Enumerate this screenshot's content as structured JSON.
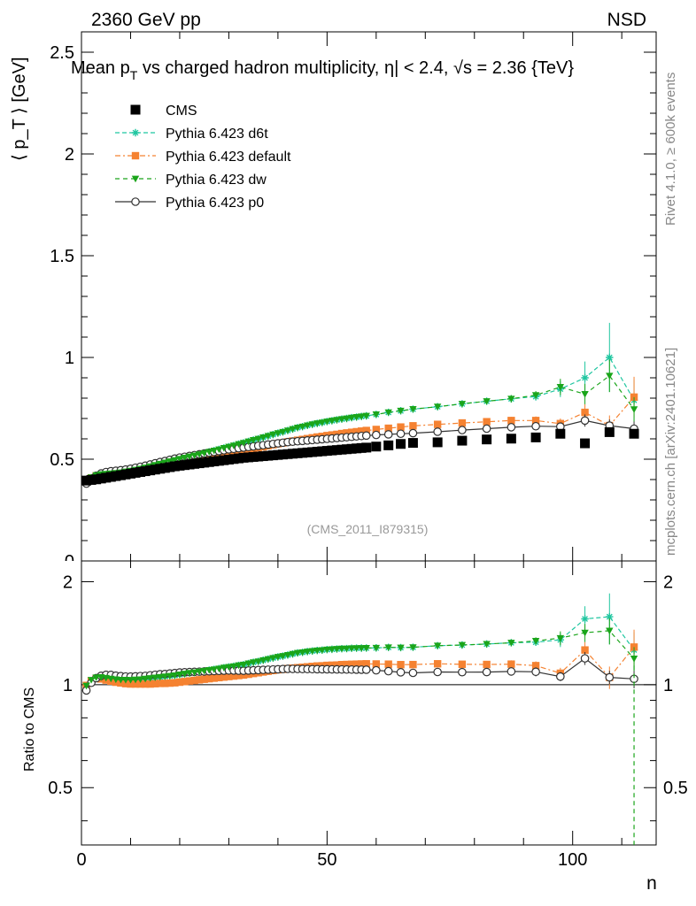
{
  "header": {
    "left": "2360 GeV pp",
    "right": "NSD",
    "title_parts": [
      "Mean p",
      "T",
      " vs charged hadron multiplicity, ",
      "η",
      "| < 2.4, ",
      "√",
      "s",
      " = 2.36 {TeV}"
    ],
    "watermark": "(CMS_2011_I879315)",
    "side_top": "Rivet 4.1.0, ≥ 600k events",
    "side_bottom": "mcplots.cern.ch [arXiv:2401.10621]"
  },
  "chart_data": {
    "type": "scatter",
    "title": "Mean p_T vs charged hadron multiplicity, |η| < 2.4, √s = 2.36 TeV",
    "xlabel": "n",
    "ylabel": "⟨ p_T ⟩ [GeV]",
    "ratio_ylabel": "Ratio to CMS",
    "xlim": [
      0,
      117
    ],
    "ylim": [
      0,
      2.6
    ],
    "ratio_ylim": [
      0.34,
      2.3
    ],
    "xticks": [
      "0",
      "50",
      "100"
    ],
    "yticks": [
      "0.5",
      "1",
      "1.5",
      "2",
      "2.5"
    ],
    "ratio_yticks": [
      "0.5",
      "1",
      "2"
    ],
    "x": [
      1,
      2,
      3,
      4,
      5,
      6,
      7,
      8,
      9,
      10,
      11,
      12,
      13,
      14,
      15,
      16,
      17,
      18,
      19,
      20,
      21,
      22,
      23,
      24,
      25,
      26,
      27,
      28,
      29,
      30,
      31,
      32,
      33,
      34,
      35,
      36,
      37,
      38,
      39,
      40,
      41,
      42,
      43,
      44,
      45,
      46,
      47,
      48,
      49,
      50,
      51,
      52,
      53,
      54,
      55,
      56,
      57,
      58,
      60,
      62.5,
      65,
      67.5,
      72.5,
      77.5,
      82.5,
      87.5,
      92.5,
      97.5,
      102.5,
      107.5,
      112.5
    ],
    "series": [
      {
        "name": "CMS",
        "color": "#000000",
        "marker": "square",
        "values": [
          0.395,
          0.398,
          0.401,
          0.405,
          0.409,
          0.413,
          0.417,
          0.421,
          0.425,
          0.429,
          0.433,
          0.437,
          0.441,
          0.445,
          0.449,
          0.453,
          0.457,
          0.461,
          0.465,
          0.468,
          0.471,
          0.474,
          0.477,
          0.48,
          0.483,
          0.486,
          0.489,
          0.492,
          0.495,
          0.498,
          0.501,
          0.504,
          0.507,
          0.509,
          0.511,
          0.513,
          0.515,
          0.517,
          0.519,
          0.521,
          0.523,
          0.525,
          0.527,
          0.529,
          0.531,
          0.533,
          0.535,
          0.537,
          0.539,
          0.541,
          0.543,
          0.545,
          0.547,
          0.549,
          0.551,
          0.553,
          0.555,
          0.557,
          0.562,
          0.568,
          0.575,
          0.58,
          0.583,
          0.591,
          0.597,
          0.601,
          0.607,
          0.625,
          0.578,
          0.633,
          0.625
        ]
      },
      {
        "name": "Pythia 6.423 d6t",
        "color": "#1fc6a0",
        "marker": "star",
        "dash": "5,3",
        "values": [
          0.39,
          0.409,
          0.42,
          0.425,
          0.428,
          0.43,
          0.432,
          0.435,
          0.439,
          0.443,
          0.448,
          0.453,
          0.459,
          0.465,
          0.471,
          0.477,
          0.483,
          0.489,
          0.495,
          0.501,
          0.507,
          0.513,
          0.518,
          0.524,
          0.53,
          0.536,
          0.542,
          0.548,
          0.555,
          0.561,
          0.567,
          0.574,
          0.58,
          0.587,
          0.594,
          0.6,
          0.607,
          0.614,
          0.621,
          0.628,
          0.634,
          0.641,
          0.648,
          0.655,
          0.66,
          0.666,
          0.671,
          0.676,
          0.68,
          0.685,
          0.689,
          0.693,
          0.697,
          0.7,
          0.704,
          0.707,
          0.71,
          0.713,
          0.72,
          0.73,
          0.738,
          0.746,
          0.758,
          0.772,
          0.785,
          0.797,
          0.808,
          0.845,
          0.9,
          1.0,
          0.79
        ],
        "errors": [
          0.003,
          0.003,
          0.003,
          0.003,
          0.003,
          0.003,
          0.003,
          0.003,
          0.003,
          0.003,
          0.003,
          0.003,
          0.003,
          0.003,
          0.003,
          0.003,
          0.003,
          0.003,
          0.003,
          0.003,
          0.003,
          0.003,
          0.003,
          0.003,
          0.003,
          0.003,
          0.003,
          0.003,
          0.003,
          0.003,
          0.003,
          0.003,
          0.003,
          0.003,
          0.003,
          0.003,
          0.003,
          0.003,
          0.003,
          0.003,
          0.003,
          0.003,
          0.004,
          0.004,
          0.004,
          0.004,
          0.004,
          0.004,
          0.004,
          0.004,
          0.005,
          0.005,
          0.005,
          0.005,
          0.005,
          0.005,
          0.005,
          0.006,
          0.006,
          0.007,
          0.008,
          0.009,
          0.01,
          0.012,
          0.015,
          0.018,
          0.02,
          0.04,
          0.08,
          0.17,
          0.1
        ]
      },
      {
        "name": "Pythia 6.423 default",
        "color": "#f58231",
        "marker": "square",
        "dash": "6,3,2,3",
        "values": [
          0.393,
          0.408,
          0.418,
          0.421,
          0.422,
          0.423,
          0.424,
          0.426,
          0.428,
          0.431,
          0.435,
          0.439,
          0.443,
          0.447,
          0.452,
          0.457,
          0.461,
          0.466,
          0.471,
          0.476,
          0.481,
          0.486,
          0.491,
          0.496,
          0.501,
          0.506,
          0.511,
          0.516,
          0.521,
          0.526,
          0.531,
          0.536,
          0.541,
          0.546,
          0.551,
          0.556,
          0.561,
          0.566,
          0.571,
          0.576,
          0.58,
          0.585,
          0.589,
          0.593,
          0.597,
          0.601,
          0.605,
          0.609,
          0.612,
          0.616,
          0.619,
          0.622,
          0.626,
          0.629,
          0.632,
          0.635,
          0.638,
          0.641,
          0.646,
          0.652,
          0.658,
          0.664,
          0.671,
          0.678,
          0.684,
          0.69,
          0.69,
          0.675,
          0.73,
          0.665,
          0.805
        ],
        "errors": [
          0.003,
          0.003,
          0.003,
          0.003,
          0.003,
          0.003,
          0.003,
          0.003,
          0.003,
          0.003,
          0.003,
          0.003,
          0.003,
          0.003,
          0.003,
          0.003,
          0.003,
          0.003,
          0.003,
          0.003,
          0.003,
          0.003,
          0.003,
          0.003,
          0.003,
          0.003,
          0.003,
          0.003,
          0.003,
          0.003,
          0.003,
          0.003,
          0.003,
          0.003,
          0.003,
          0.003,
          0.003,
          0.003,
          0.003,
          0.003,
          0.003,
          0.003,
          0.004,
          0.004,
          0.004,
          0.004,
          0.004,
          0.004,
          0.004,
          0.004,
          0.005,
          0.005,
          0.005,
          0.005,
          0.005,
          0.005,
          0.005,
          0.006,
          0.006,
          0.007,
          0.008,
          0.009,
          0.01,
          0.012,
          0.015,
          0.018,
          0.02,
          0.025,
          0.04,
          0.05,
          0.1
        ]
      },
      {
        "name": "Pythia 6.423 dw",
        "color": "#1aa51a",
        "marker": "triangle-down",
        "dash": "5,4",
        "values": [
          0.392,
          0.411,
          0.421,
          0.426,
          0.428,
          0.43,
          0.432,
          0.435,
          0.439,
          0.443,
          0.448,
          0.453,
          0.459,
          0.465,
          0.471,
          0.477,
          0.483,
          0.489,
          0.495,
          0.501,
          0.507,
          0.513,
          0.518,
          0.524,
          0.53,
          0.536,
          0.542,
          0.548,
          0.555,
          0.561,
          0.567,
          0.574,
          0.58,
          0.587,
          0.594,
          0.6,
          0.607,
          0.614,
          0.621,
          0.628,
          0.634,
          0.641,
          0.648,
          0.655,
          0.66,
          0.666,
          0.671,
          0.676,
          0.68,
          0.685,
          0.689,
          0.693,
          0.697,
          0.7,
          0.704,
          0.707,
          0.71,
          0.713,
          0.72,
          0.73,
          0.738,
          0.746,
          0.758,
          0.772,
          0.785,
          0.797,
          0.815,
          0.855,
          0.82,
          0.91,
          0.745
        ],
        "errors": [
          0.003,
          0.003,
          0.003,
          0.003,
          0.003,
          0.003,
          0.003,
          0.003,
          0.003,
          0.003,
          0.003,
          0.003,
          0.003,
          0.003,
          0.003,
          0.003,
          0.003,
          0.003,
          0.003,
          0.003,
          0.003,
          0.003,
          0.003,
          0.003,
          0.003,
          0.003,
          0.003,
          0.003,
          0.003,
          0.003,
          0.003,
          0.003,
          0.003,
          0.003,
          0.003,
          0.003,
          0.003,
          0.003,
          0.003,
          0.003,
          0.003,
          0.003,
          0.004,
          0.004,
          0.004,
          0.004,
          0.004,
          0.004,
          0.004,
          0.004,
          0.005,
          0.005,
          0.005,
          0.005,
          0.005,
          0.005,
          0.005,
          0.006,
          0.006,
          0.007,
          0.008,
          0.009,
          0.01,
          0.012,
          0.015,
          0.018,
          0.02,
          0.04,
          0.05,
          0.08,
          0.06
        ]
      },
      {
        "name": "Pythia 6.423 p0",
        "color": "#333333",
        "marker": "circle-open",
        "dash": "",
        "values": [
          0.38,
          0.403,
          0.419,
          0.43,
          0.437,
          0.441,
          0.443,
          0.446,
          0.449,
          0.453,
          0.458,
          0.463,
          0.468,
          0.474,
          0.48,
          0.486,
          0.491,
          0.497,
          0.503,
          0.508,
          0.512,
          0.516,
          0.52,
          0.524,
          0.528,
          0.532,
          0.536,
          0.54,
          0.544,
          0.548,
          0.551,
          0.554,
          0.557,
          0.56,
          0.563,
          0.566,
          0.569,
          0.572,
          0.575,
          0.578,
          0.581,
          0.584,
          0.586,
          0.588,
          0.59,
          0.592,
          0.594,
          0.596,
          0.598,
          0.6,
          0.602,
          0.604,
          0.606,
          0.608,
          0.61,
          0.612,
          0.614,
          0.616,
          0.619,
          0.622,
          0.625,
          0.628,
          0.635,
          0.643,
          0.65,
          0.657,
          0.662,
          0.66,
          0.69,
          0.665,
          0.65
        ],
        "errors": [
          0.003,
          0.003,
          0.003,
          0.003,
          0.003,
          0.003,
          0.003,
          0.003,
          0.003,
          0.003,
          0.003,
          0.003,
          0.003,
          0.003,
          0.003,
          0.003,
          0.003,
          0.003,
          0.003,
          0.003,
          0.003,
          0.003,
          0.003,
          0.003,
          0.003,
          0.003,
          0.003,
          0.003,
          0.003,
          0.003,
          0.003,
          0.003,
          0.003,
          0.003,
          0.003,
          0.003,
          0.003,
          0.003,
          0.003,
          0.003,
          0.003,
          0.003,
          0.004,
          0.004,
          0.004,
          0.004,
          0.004,
          0.004,
          0.004,
          0.004,
          0.005,
          0.005,
          0.005,
          0.005,
          0.005,
          0.005,
          0.005,
          0.006,
          0.006,
          0.007,
          0.008,
          0.009,
          0.01,
          0.012,
          0.015,
          0.018,
          0.02,
          0.02,
          0.03,
          0.03,
          0.04
        ]
      }
    ]
  }
}
